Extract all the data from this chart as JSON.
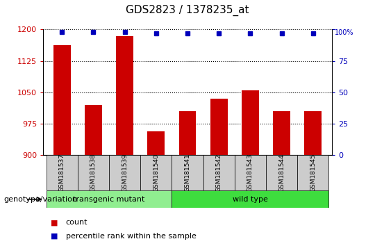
{
  "title": "GDS2823 / 1378235_at",
  "samples": [
    "GSM181537",
    "GSM181538",
    "GSM181539",
    "GSM181540",
    "GSM181541",
    "GSM181542",
    "GSM181543",
    "GSM181544",
    "GSM181545"
  ],
  "counts": [
    1163,
    1020,
    1185,
    957,
    1005,
    1035,
    1055,
    1005,
    1005
  ],
  "percentiles": [
    98,
    98,
    98,
    97,
    97,
    97,
    97,
    97,
    97
  ],
  "ylim_left": [
    900,
    1200
  ],
  "ylim_right": [
    0,
    100
  ],
  "yticks_left": [
    900,
    975,
    1050,
    1125,
    1200
  ],
  "yticks_right": [
    0,
    25,
    50,
    75,
    100
  ],
  "groups": [
    {
      "label": "transgenic mutant",
      "start": 0,
      "end": 3,
      "color": "#90EE90"
    },
    {
      "label": "wild type",
      "start": 4,
      "end": 8,
      "color": "#3EDD3E"
    }
  ],
  "bar_color": "#CC0000",
  "dot_color": "#0000BB",
  "bar_width": 0.55,
  "group_label": "genotype/variation",
  "legend_count_color": "#CC0000",
  "legend_dot_color": "#0000BB",
  "legend_count_label": "count",
  "legend_percentile_label": "percentile rank within the sample",
  "background_color": "#FFFFFF",
  "tick_bg_color": "#CCCCCC"
}
